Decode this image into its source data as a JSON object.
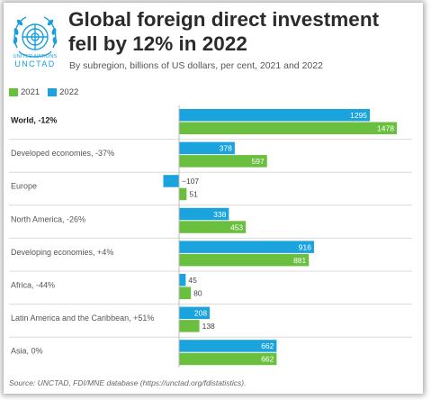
{
  "title": "Global foreign direct investment fell by 12% in 2022",
  "subtitle": "By subregion, billions of US dollars, per cent, 2021 and 2022",
  "logo": {
    "line1": "UNITED NATIONS",
    "line2": "UNCTAD"
  },
  "source": "Source: UNCTAD, FDI/MNE database (https://unctad.org/fdistatistics).",
  "colors": {
    "y2021": "#6bbf3f",
    "y2022": "#1aa3dd",
    "grid": "#dcdcdc",
    "label": "#555555"
  },
  "chart_data": {
    "type": "bar",
    "orientation": "horizontal",
    "categories": [
      "World, -12%",
      "Developed economies, -37%",
      "Europe",
      "North America, -26%",
      "Developing economies, +4%",
      "Africa, -44%",
      "Latin America and the Caribbean, +51%",
      "Asia, 0%"
    ],
    "bold_categories": [
      "World, -12%"
    ],
    "series": [
      {
        "name": "2021",
        "values": [
          1478,
          597,
          51,
          453,
          881,
          80,
          138,
          662
        ]
      },
      {
        "name": "2022",
        "values": [
          1295,
          378,
          -107,
          338,
          916,
          45,
          208,
          662
        ]
      }
    ],
    "data_labels": {
      "2021": [
        "1478",
        "597",
        "51",
        "453",
        "881",
        "80",
        "138",
        "662"
      ],
      "2022": [
        "1295",
        "378",
        "−107",
        "338",
        "916",
        "45",
        "208",
        "662"
      ]
    },
    "legend_position": "top-left",
    "xlim": [
      -107,
      1478
    ]
  }
}
